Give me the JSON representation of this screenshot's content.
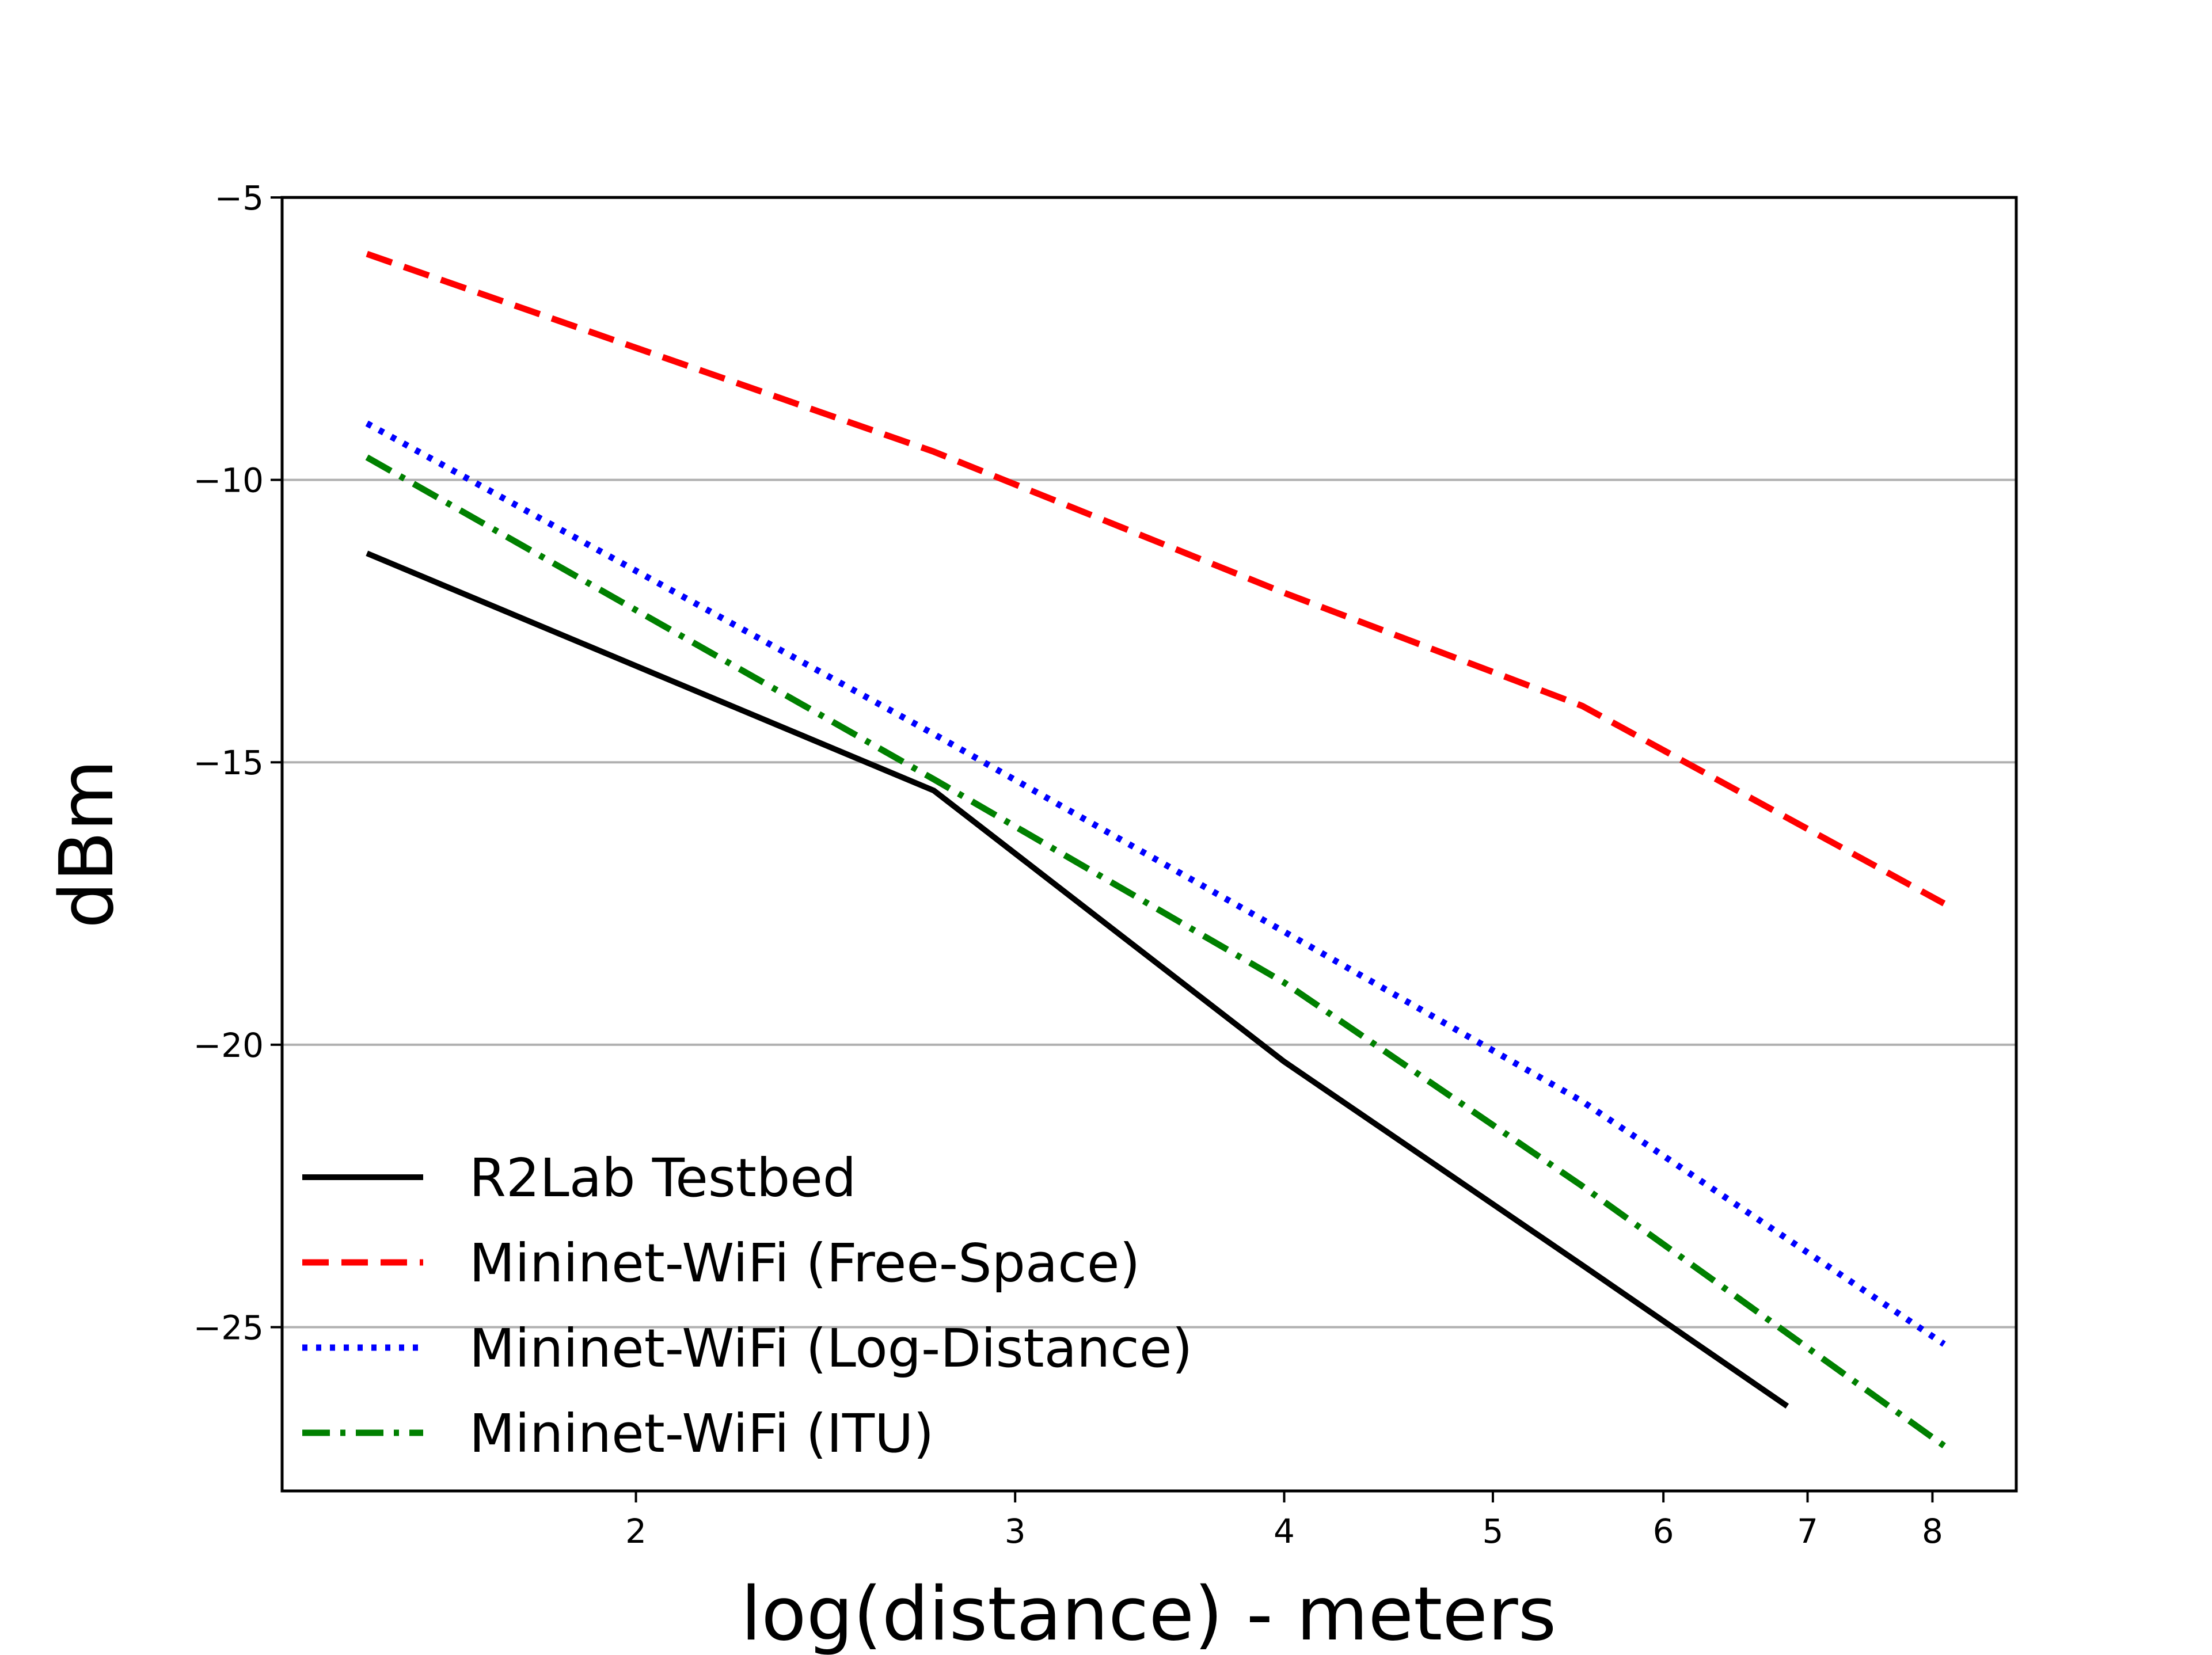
{
  "chart_data": {
    "type": "line",
    "title": "",
    "xlabel": "log(distance) - meters",
    "ylabel": "dBm",
    "xscale": "log",
    "xlim": [
      1.37,
      8.75
    ],
    "ylim": [
      -27.9,
      -5
    ],
    "xticks": [
      2,
      3,
      4,
      5,
      6,
      7,
      8
    ],
    "yticks": [
      -5,
      -10,
      -15,
      -20,
      -25
    ],
    "ytick_labels": [
      "−5",
      "−10",
      "−15",
      "−20",
      "−25"
    ],
    "grid": "horizontal",
    "legend_position": "lower-left",
    "series": [
      {
        "name": "R2Lab Testbed",
        "color": "#000000",
        "style": "solid",
        "points": [
          [
            1.5,
            -11.3
          ],
          [
            2.75,
            -15.5
          ],
          [
            4.0,
            -20.3
          ],
          [
            5.5,
            -23.9
          ],
          [
            6.85,
            -26.4
          ]
        ]
      },
      {
        "name": "Mininet-WiFi (Free-Space)",
        "color": "#ff0000",
        "style": "dashed",
        "points": [
          [
            1.5,
            -6.0
          ],
          [
            2.75,
            -9.5
          ],
          [
            4.0,
            -12.0
          ],
          [
            5.5,
            -14.0
          ],
          [
            8.1,
            -17.5
          ]
        ]
      },
      {
        "name": "Mininet-WiFi (Log-Distance)",
        "color": "#0000ff",
        "style": "dotted",
        "points": [
          [
            1.5,
            -9.0
          ],
          [
            2.75,
            -14.5
          ],
          [
            4.0,
            -18.0
          ],
          [
            5.5,
            -21.0
          ],
          [
            8.1,
            -25.3
          ]
        ]
      },
      {
        "name": "Mininet-WiFi (ITU)",
        "color": "#008000",
        "style": "dashdot",
        "points": [
          [
            1.5,
            -9.6
          ],
          [
            2.75,
            -15.3
          ],
          [
            4.0,
            -18.9
          ],
          [
            5.5,
            -22.5
          ],
          [
            8.1,
            -27.1
          ]
        ]
      }
    ]
  }
}
